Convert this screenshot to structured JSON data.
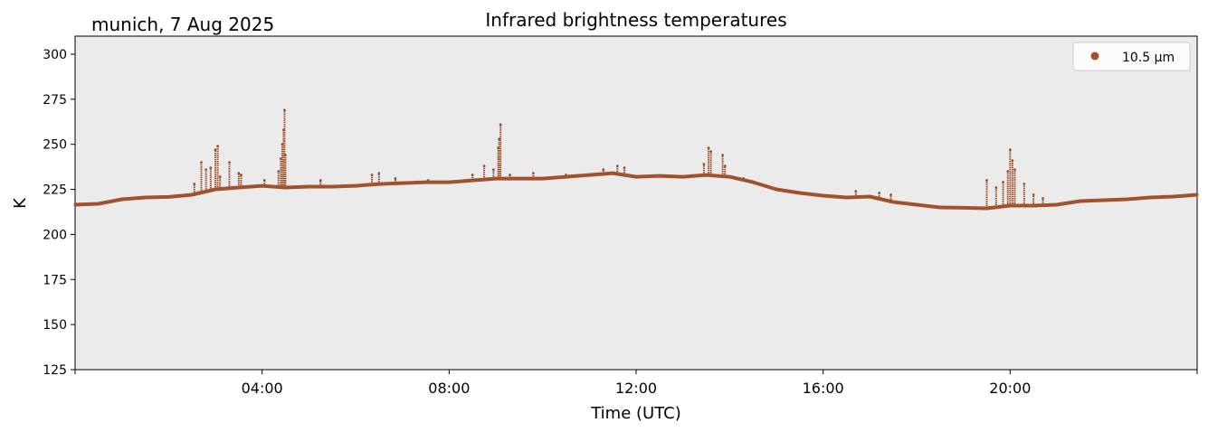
{
  "chart_data": {
    "type": "scatter",
    "title": "Infrared brightness temperatures",
    "location_date": "munich, 7 Aug 2025",
    "xlabel": "Time (UTC)",
    "ylabel": "K",
    "xlim": [
      0,
      24
    ],
    "ylim": [
      125,
      310
    ],
    "yticks": [
      125,
      150,
      175,
      200,
      225,
      250,
      275,
      300
    ],
    "xticks": [
      {
        "value": 4,
        "label": "04:00"
      },
      {
        "value": 8,
        "label": "08:00"
      },
      {
        "value": 12,
        "label": "12:00"
      },
      {
        "value": 16,
        "label": "16:00"
      },
      {
        "value": 20,
        "label": "20:00"
      }
    ],
    "legend": {
      "label": "10.5 µm",
      "placement": "top-right"
    },
    "series": [
      {
        "name": "10.5 µm",
        "color": "#a0522d",
        "baseline": [
          [
            0.0,
            216.5
          ],
          [
            0.5,
            217
          ],
          [
            1.0,
            219.5
          ],
          [
            1.5,
            220.5
          ],
          [
            2.0,
            220.8
          ],
          [
            2.5,
            222
          ],
          [
            3.0,
            225
          ],
          [
            3.5,
            226
          ],
          [
            4.0,
            227
          ],
          [
            4.5,
            226
          ],
          [
            5.0,
            226.5
          ],
          [
            5.5,
            226.5
          ],
          [
            6.0,
            227
          ],
          [
            6.5,
            228
          ],
          [
            7.0,
            228.5
          ],
          [
            7.5,
            229
          ],
          [
            8.0,
            229
          ],
          [
            8.5,
            230
          ],
          [
            9.0,
            231
          ],
          [
            9.5,
            231
          ],
          [
            10.0,
            231
          ],
          [
            10.5,
            232
          ],
          [
            11.0,
            233
          ],
          [
            11.5,
            234
          ],
          [
            12.0,
            232
          ],
          [
            12.5,
            232.5
          ],
          [
            13.0,
            232
          ],
          [
            13.5,
            233
          ],
          [
            14.0,
            232
          ],
          [
            14.5,
            229
          ],
          [
            15.0,
            225
          ],
          [
            15.5,
            223
          ],
          [
            16.0,
            221.5
          ],
          [
            16.5,
            220.5
          ],
          [
            17.0,
            221
          ],
          [
            17.5,
            218
          ],
          [
            18.0,
            216.5
          ],
          [
            18.5,
            215
          ],
          [
            19.0,
            214.8
          ],
          [
            19.5,
            214.5
          ],
          [
            20.0,
            216
          ],
          [
            20.5,
            216
          ],
          [
            21.0,
            216.5
          ],
          [
            21.5,
            218.5
          ],
          [
            22.0,
            219
          ],
          [
            22.5,
            219.5
          ],
          [
            23.0,
            220.5
          ],
          [
            23.5,
            221
          ],
          [
            24.0,
            222
          ]
        ],
        "spikes": [
          [
            2.55,
            228
          ],
          [
            2.7,
            240
          ],
          [
            2.8,
            236
          ],
          [
            2.9,
            237
          ],
          [
            3.0,
            247
          ],
          [
            3.05,
            249
          ],
          [
            3.1,
            232
          ],
          [
            3.3,
            240
          ],
          [
            3.5,
            234
          ],
          [
            3.55,
            233
          ],
          [
            4.05,
            230
          ],
          [
            4.35,
            235
          ],
          [
            4.4,
            242
          ],
          [
            4.43,
            250
          ],
          [
            4.46,
            258
          ],
          [
            4.48,
            269
          ],
          [
            4.5,
            244
          ],
          [
            5.25,
            230
          ],
          [
            6.35,
            233
          ],
          [
            6.5,
            234
          ],
          [
            6.85,
            231
          ],
          [
            7.55,
            230
          ],
          [
            8.5,
            233
          ],
          [
            8.75,
            238
          ],
          [
            8.95,
            236
          ],
          [
            9.05,
            248
          ],
          [
            9.07,
            253
          ],
          [
            9.1,
            261
          ],
          [
            9.3,
            233
          ],
          [
            9.8,
            234
          ],
          [
            10.5,
            233
          ],
          [
            11.3,
            236
          ],
          [
            11.6,
            238
          ],
          [
            11.75,
            237
          ],
          [
            13.45,
            239
          ],
          [
            13.55,
            248
          ],
          [
            13.6,
            246
          ],
          [
            13.85,
            244
          ],
          [
            13.9,
            238
          ],
          [
            14.3,
            231
          ],
          [
            16.7,
            224
          ],
          [
            17.2,
            223
          ],
          [
            17.45,
            222
          ],
          [
            19.5,
            230
          ],
          [
            19.7,
            226
          ],
          [
            19.85,
            229
          ],
          [
            19.95,
            235
          ],
          [
            20.0,
            247
          ],
          [
            20.05,
            241
          ],
          [
            20.1,
            236
          ],
          [
            20.3,
            228
          ],
          [
            20.5,
            222
          ],
          [
            20.7,
            220
          ]
        ]
      }
    ]
  }
}
